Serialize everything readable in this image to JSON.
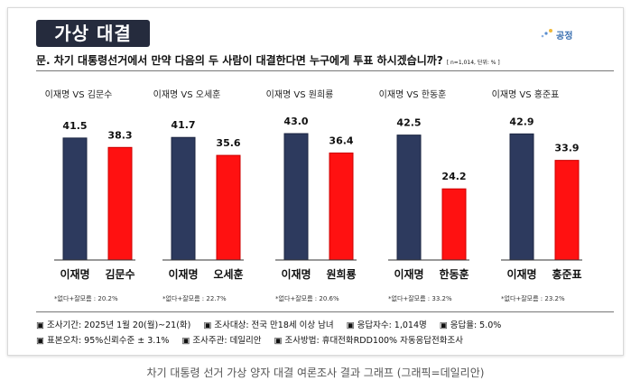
{
  "header": {
    "title": "가상 대결",
    "logo_text": "공정",
    "question": "문. 차기 대통령선거에서 만약 다음의 두 사람이 대결한다면 누구에게 투표 하시겠습니까?",
    "question_note": "[ n=1,014, 단위: % ]"
  },
  "chart_data": {
    "type": "bar",
    "ylim": [
      0,
      50
    ],
    "colors": {
      "lee": "#2d3a5e",
      "opponent": "#ff1111"
    },
    "groups": [
      {
        "title": "이재명 VS 김문수",
        "categories": [
          "이재명",
          "김문수"
        ],
        "values": [
          41.5,
          38.3
        ],
        "labels": [
          "41.5",
          "38.3"
        ],
        "note": "*없다+잘모름 : 20.2%"
      },
      {
        "title": "이재명 VS 오세훈",
        "categories": [
          "이재명",
          "오세훈"
        ],
        "values": [
          41.7,
          35.6
        ],
        "labels": [
          "41.7",
          "35.6"
        ],
        "note": "*없다+잘모름 : 22.7%"
      },
      {
        "title": "이재명 VS 원희룡",
        "categories": [
          "이재명",
          "원희룡"
        ],
        "values": [
          43.0,
          36.4
        ],
        "labels": [
          "43.0",
          "36.4"
        ],
        "note": "*없다+잘모름 : 20.6%"
      },
      {
        "title": "이재명 VS 한동훈",
        "categories": [
          "이재명",
          "한동훈"
        ],
        "values": [
          42.5,
          24.2
        ],
        "labels": [
          "42.5",
          "24.2"
        ],
        "note": "*없다+잘모름 : 33.2%"
      },
      {
        "title": "이재명 VS 홍준표",
        "categories": [
          "이재명",
          "홍준표"
        ],
        "values": [
          42.9,
          33.9
        ],
        "labels": [
          "42.9",
          "33.9"
        ],
        "note": "*없다+잘모름 : 23.2%"
      }
    ]
  },
  "footer": {
    "line1": [
      "▣ 조사기간: 2025년 1월 20(월)~21(화)",
      "▣ 조사대상: 전국 만18세 이상 남녀",
      "▣ 응답자수: 1,014명",
      "▣ 응답율: 5.0%"
    ],
    "line2": [
      "▣ 표본오차: 95%신뢰수준 ± 3.1%",
      "▣ 조사주관: 데일리안",
      "▣ 조사방법: 휴대전화RDD100% 자동응답전화조사"
    ]
  },
  "caption": "차기 대통령 선거 가상 양자 대결 여론조사 결과 그래프 (그래픽=데일리안)"
}
